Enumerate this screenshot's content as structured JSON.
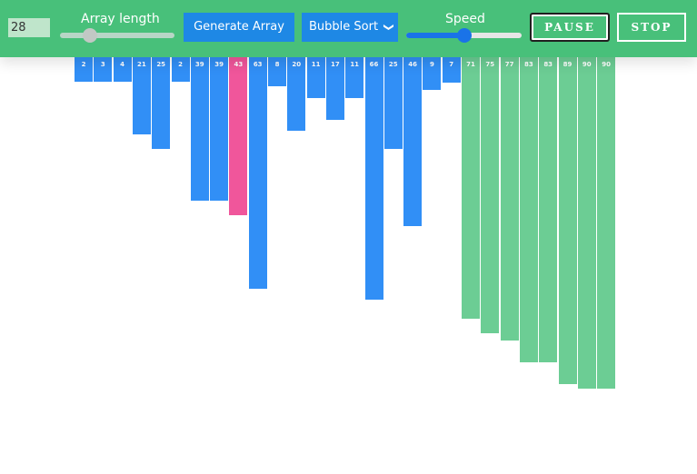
{
  "controls": {
    "array_length_value": "28",
    "array_length_label": "Array length",
    "array_length_slider_fraction": 0.26,
    "generate_label": "Generate Array",
    "algorithm_selected": "Bubble Sort",
    "speed_label": "Speed",
    "speed_slider_fraction": 0.5,
    "pause_label": "PAUSE",
    "stop_label": "STOP"
  },
  "colors": {
    "header": "#48c07a",
    "unsorted": "#318ff6",
    "comparing": "#f0569b",
    "sorted": "#6ccd94"
  },
  "chart_data": {
    "type": "bar",
    "values": [
      2,
      3,
      4,
      21,
      25,
      2,
      39,
      39,
      43,
      63,
      8,
      20,
      11,
      17,
      11,
      66,
      25,
      46,
      9,
      7,
      71,
      75,
      77,
      83,
      83,
      89,
      90,
      90
    ],
    "states": [
      "unsorted",
      "unsorted",
      "unsorted",
      "unsorted",
      "unsorted",
      "unsorted",
      "unsorted",
      "unsorted",
      "comparing",
      "unsorted",
      "unsorted",
      "unsorted",
      "unsorted",
      "unsorted",
      "unsorted",
      "unsorted",
      "unsorted",
      "unsorted",
      "unsorted",
      "unsorted",
      "sorted",
      "sorted",
      "sorted",
      "sorted",
      "sorted",
      "sorted",
      "sorted",
      "sorted"
    ]
  }
}
